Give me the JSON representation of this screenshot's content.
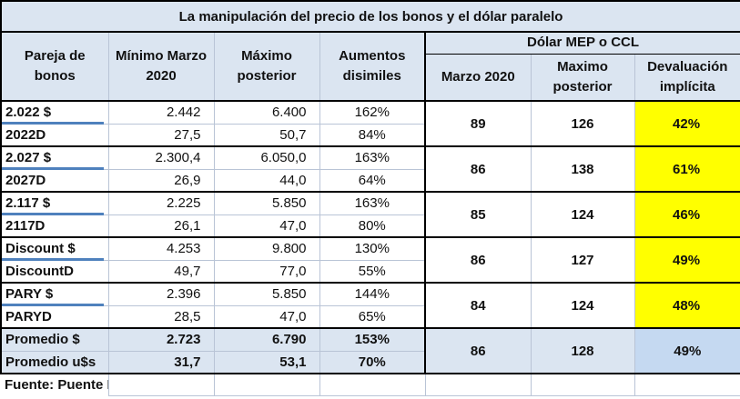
{
  "title": "La manipulación del precio de los bonos y el dólar paralelo",
  "headers": {
    "pair": "Pareja de bonos",
    "min": "Mínimo Marzo 2020",
    "max": "Máximo posterior",
    "increase": "Aumentos disimiles",
    "mep_group": "Dólar MEP o CCL",
    "mep_march": "Marzo 2020",
    "mep_max": "Maximo posterior",
    "devaluation": "Devaluación implícita"
  },
  "groups": [
    {
      "rows": [
        {
          "bond": "2.022 $",
          "min": "2.442",
          "max": "6.400",
          "increase": "162%"
        },
        {
          "bond": "2022D",
          "min": "27,5",
          "max": "50,7",
          "increase": "84%"
        }
      ],
      "mep_march": "89",
      "mep_max": "126",
      "devaluation": "42%"
    },
    {
      "rows": [
        {
          "bond": "2.027 $",
          "min": "2.300,4",
          "max": "6.050,0",
          "increase": "163%"
        },
        {
          "bond": "2027D",
          "min": "26,9",
          "max": "44,0",
          "increase": "64%"
        }
      ],
      "mep_march": "86",
      "mep_max": "138",
      "devaluation": "61%"
    },
    {
      "rows": [
        {
          "bond": "2.117 $",
          "min": "2.225",
          "max": "5.850",
          "increase": "163%"
        },
        {
          "bond": "2117D",
          "min": "26,1",
          "max": "47,0",
          "increase": "80%"
        }
      ],
      "mep_march": "85",
      "mep_max": "124",
      "devaluation": "46%"
    },
    {
      "rows": [
        {
          "bond": "Discount $",
          "min": "4.253",
          "max": "9.800",
          "increase": "130%"
        },
        {
          "bond": "DiscountD",
          "min": "49,7",
          "max": "77,0",
          "increase": "55%"
        }
      ],
      "mep_march": "86",
      "mep_max": "127",
      "devaluation": "49%"
    },
    {
      "rows": [
        {
          "bond": "PARY $",
          "min": "2.396",
          "max": "5.850",
          "increase": "144%"
        },
        {
          "bond": "PARYD",
          "min": "28,5",
          "max": "47,0",
          "increase": "65%"
        }
      ],
      "mep_march": "84",
      "mep_max": "124",
      "devaluation": "48%"
    },
    {
      "rows": [
        {
          "bond": "Promedio $",
          "min": "2.723",
          "max": "6.790",
          "increase": "153%"
        },
        {
          "bond": "Promedio u$s",
          "min": "31,7",
          "max": "53,1",
          "increase": "70%"
        }
      ],
      "mep_march": "86",
      "mep_max": "128",
      "devaluation": "49%"
    }
  ],
  "source": "Fuente: Puente Hnos",
  "colors": {
    "header_bg": "#dbe5f1",
    "highlight": "#ffff00",
    "avg_dev": "#c5d9f1",
    "accent_bar": "#4f81bd"
  }
}
